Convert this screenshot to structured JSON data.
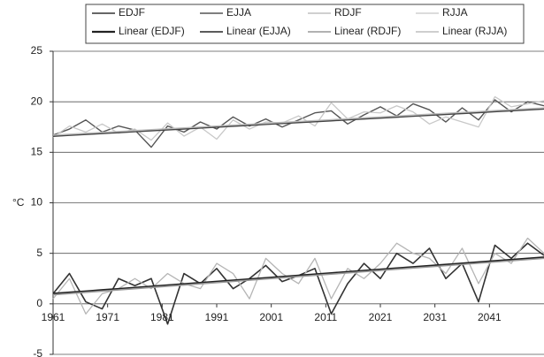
{
  "chart_data": {
    "type": "line",
    "y_label": "°C",
    "x": [
      1961,
      1964,
      1967,
      1970,
      1973,
      1976,
      1979,
      1982,
      1985,
      1988,
      1991,
      1994,
      1997,
      2000,
      2003,
      2006,
      2009,
      2012,
      2015,
      2018,
      2021,
      2024,
      2027,
      2030,
      2033,
      2036,
      2039,
      2042,
      2045,
      2048,
      2051
    ],
    "xlim": [
      1961,
      2051
    ],
    "xticks": [
      1961,
      1971,
      1981,
      1991,
      2001,
      2011,
      2021,
      2031,
      2041
    ],
    "ylim": [
      -5,
      25
    ],
    "yticks": [
      -5,
      0,
      5,
      10,
      15,
      20,
      25
    ],
    "grid": true,
    "legend": "top",
    "series": [
      {
        "name": "EDJF",
        "color": "#333333",
        "values": [
          1.0,
          3.0,
          0.2,
          -0.5,
          2.5,
          1.8,
          2.5,
          -2.0,
          3.0,
          2.0,
          3.5,
          1.5,
          2.5,
          3.8,
          2.2,
          2.8,
          3.5,
          -1.0,
          2.0,
          4.0,
          2.5,
          5.0,
          4.0,
          5.5,
          2.5,
          4.0,
          0.2,
          5.8,
          4.5,
          6.0,
          4.8
        ]
      },
      {
        "name": "EJJA",
        "color": "#555555",
        "values": [
          16.7,
          17.3,
          18.2,
          17.0,
          17.6,
          17.2,
          15.5,
          17.6,
          17.0,
          18.0,
          17.3,
          18.5,
          17.6,
          18.3,
          17.5,
          18.2,
          18.9,
          19.1,
          17.8,
          18.7,
          19.5,
          18.6,
          19.8,
          19.2,
          18.0,
          19.4,
          18.2,
          20.2,
          19.0,
          20.0,
          19.6
        ]
      },
      {
        "name": "RDJF",
        "color": "#b5b5b5",
        "values": [
          0.5,
          2.5,
          -1.0,
          1.0,
          1.5,
          2.5,
          1.5,
          3.0,
          2.0,
          1.5,
          4.0,
          3.0,
          0.5,
          4.5,
          3.0,
          2.0,
          4.5,
          0.5,
          3.5,
          2.5,
          4.0,
          6.0,
          5.0,
          4.5,
          3.0,
          5.5,
          2.0,
          5.0,
          4.0,
          6.5,
          5.0
        ]
      },
      {
        "name": "RJJA",
        "color": "#c8c8c8",
        "values": [
          16.5,
          17.6,
          17.0,
          17.8,
          16.9,
          17.3,
          16.2,
          17.9,
          16.6,
          17.5,
          16.3,
          18.2,
          17.3,
          18.0,
          17.9,
          18.6,
          17.6,
          19.9,
          18.3,
          19.0,
          18.9,
          19.6,
          19.0,
          17.8,
          18.5,
          18.0,
          17.5,
          20.5,
          19.5,
          19.8,
          20.1
        ]
      },
      {
        "name": "Linear (EDJF)",
        "color": "#222222",
        "values": [
          1.0,
          1.12,
          1.24,
          1.36,
          1.48,
          1.6,
          1.72,
          1.84,
          1.96,
          2.08,
          2.2,
          2.32,
          2.44,
          2.56,
          2.68,
          2.8,
          2.92,
          3.04,
          3.16,
          3.28,
          3.4,
          3.52,
          3.64,
          3.76,
          3.88,
          4.0,
          4.12,
          4.24,
          4.36,
          4.48,
          4.6
        ]
      },
      {
        "name": "Linear (EJJA)",
        "color": "#444444",
        "values": [
          16.6,
          16.69,
          16.78,
          16.87,
          16.96,
          17.05,
          17.14,
          17.23,
          17.32,
          17.41,
          17.5,
          17.59,
          17.68,
          17.77,
          17.86,
          17.95,
          18.04,
          18.13,
          18.22,
          18.31,
          18.4,
          18.49,
          18.58,
          18.67,
          18.76,
          18.85,
          18.94,
          19.03,
          19.12,
          19.21,
          19.3
        ]
      },
      {
        "name": "Linear (RDJF)",
        "color": "#999999",
        "values": [
          0.9,
          1.02,
          1.14,
          1.26,
          1.38,
          1.5,
          1.62,
          1.74,
          1.86,
          1.98,
          2.1,
          2.22,
          2.34,
          2.46,
          2.58,
          2.7,
          2.82,
          2.94,
          3.06,
          3.18,
          3.3,
          3.42,
          3.54,
          3.66,
          3.78,
          3.9,
          4.02,
          4.14,
          4.26,
          4.38,
          4.5
        ]
      },
      {
        "name": "Linear (RJJA)",
        "color": "#bdbdbd",
        "values": [
          16.7,
          16.79,
          16.88,
          16.97,
          17.06,
          17.15,
          17.24,
          17.33,
          17.42,
          17.51,
          17.6,
          17.69,
          17.78,
          17.87,
          17.96,
          18.05,
          18.14,
          18.23,
          18.32,
          18.41,
          18.5,
          18.59,
          18.68,
          18.77,
          18.86,
          18.95,
          19.04,
          19.13,
          19.22,
          19.31,
          19.4
        ]
      }
    ]
  }
}
